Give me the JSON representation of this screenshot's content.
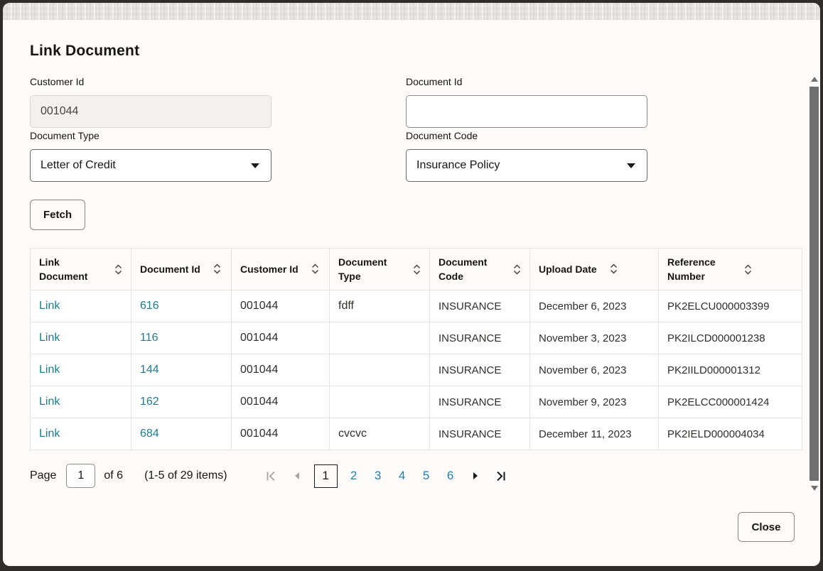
{
  "dialog": {
    "title": "Link Document",
    "fields": {
      "customer_id": {
        "label": "Customer Id",
        "value": "001044"
      },
      "document_id": {
        "label": "Document Id",
        "value": "",
        "placeholder": ""
      },
      "document_type": {
        "label": "Document Type",
        "value": "Letter of Credit"
      },
      "document_code": {
        "label": "Document Code",
        "value": "Insurance Policy"
      }
    },
    "fetch_label": "Fetch",
    "close_label": "Close"
  },
  "table": {
    "columns": [
      {
        "label": "Link Document",
        "key": "link"
      },
      {
        "label": "Document Id",
        "key": "document_id"
      },
      {
        "label": "Customer Id",
        "key": "customer_id"
      },
      {
        "label": "Document Type",
        "key": "document_type"
      },
      {
        "label": "Document Code",
        "key": "document_code"
      },
      {
        "label": "Upload Date",
        "key": "upload_date",
        "nowrap": true
      },
      {
        "label": "Reference Number",
        "key": "reference_number"
      }
    ],
    "rows": [
      [
        "Link",
        "616",
        "001044",
        "fdff",
        "INSURANCE",
        "December 6, 2023",
        "PK2ELCU000003399"
      ],
      [
        "Link",
        "116",
        "001044",
        "",
        "INSURANCE",
        "November 3, 2023",
        "PK2ILCD000001238"
      ],
      [
        "Link",
        "144",
        "001044",
        "",
        "INSURANCE",
        "November 6, 2023",
        "PK2IILD000001312"
      ],
      [
        "Link",
        "162",
        "001044",
        "",
        "INSURANCE",
        "November 9, 2023",
        "PK2ELCC000001424"
      ],
      [
        "Link",
        "684",
        "001044",
        "cvcvc",
        "INSURANCE",
        "December 11, 2023",
        "PK2IELD000004034"
      ]
    ]
  },
  "pagination": {
    "page_label": "Page",
    "current_page": "1",
    "of_label": "of 6",
    "items_label": "(1-5 of 29 items)",
    "pages": [
      "1",
      "2",
      "3",
      "4",
      "5",
      "6"
    ]
  },
  "colors": {
    "table_link": "#1f7b90",
    "page_link": "#267db3",
    "disabled_icon": "#a7a5a2",
    "enabled_icon": "#1a1a1a",
    "scroll_thumb": "#6f6f6f"
  }
}
